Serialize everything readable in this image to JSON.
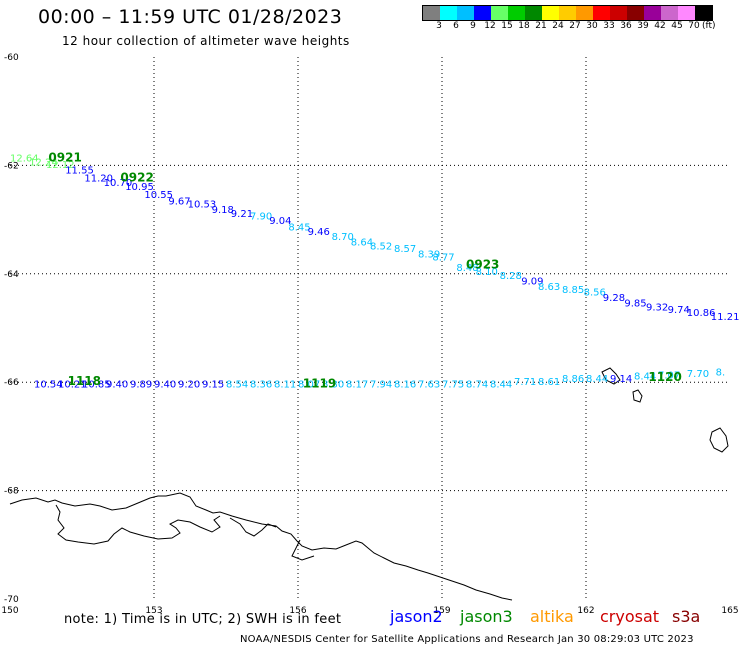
{
  "header": {
    "title": "00:00 – 11:59 UTC 01/28/2023",
    "subtitle": "12 hour collection of altimeter wave heights"
  },
  "colorbar": {
    "colors": [
      "#7f7f7f",
      "#00ffff",
      "#00bfff",
      "#0000ff",
      "#66ff66",
      "#00cc00",
      "#008800",
      "#ffff00",
      "#ffcc00",
      "#ff9900",
      "#ff0000",
      "#cc0000",
      "#880000",
      "#990099",
      "#cc66cc",
      "#ff88ff",
      "#000000"
    ],
    "labels": [
      "3",
      "6",
      "9",
      "12",
      "15",
      "18",
      "21",
      "24",
      "27",
      "30",
      "33",
      "36",
      "39",
      "42",
      "45",
      "70"
    ],
    "unit": "(ft)"
  },
  "map": {
    "lon_ticks": [
      "150",
      "153",
      "156",
      "159",
      "162",
      "165"
    ],
    "lat_ticks": [
      "-60",
      "-62",
      "-64",
      "-66",
      "-68",
      "-70"
    ]
  },
  "tracks": [
    {
      "name": "upper-track",
      "times": [
        {
          "label": "0921",
          "lon": 150.8,
          "lat": -61.93,
          "color": "#008800"
        },
        {
          "label": "0922",
          "lon": 152.3,
          "lat": -62.3,
          "color": "#008800"
        },
        {
          "label": "0923",
          "lon": 159.5,
          "lat": -63.9,
          "color": "#008800"
        }
      ],
      "points": [
        {
          "v": "12.64",
          "lon": 150.0,
          "lat": -61.93,
          "c": "#66ff66"
        },
        {
          "v": "12.24",
          "lon": 150.4,
          "lat": -62.0,
          "c": "#66ff66"
        },
        {
          "v": "12.12",
          "lon": 150.75,
          "lat": -62.05,
          "c": "#66ff66"
        },
        {
          "v": "11.55",
          "lon": 151.15,
          "lat": -62.15,
          "c": "#0000ff"
        },
        {
          "v": "11.20",
          "lon": 151.55,
          "lat": -62.3,
          "c": "#0000ff"
        },
        {
          "v": "10.70",
          "lon": 151.95,
          "lat": -62.38,
          "c": "#0000ff"
        },
        {
          "v": "10.95",
          "lon": 152.4,
          "lat": -62.45,
          "c": "#0000ff"
        },
        {
          "v": "10.55",
          "lon": 152.8,
          "lat": -62.6,
          "c": "#0000ff"
        },
        {
          "v": "9.67",
          "lon": 153.3,
          "lat": -62.72,
          "c": "#0000ff"
        },
        {
          "v": "10.53",
          "lon": 153.7,
          "lat": -62.78,
          "c": "#0000ff"
        },
        {
          "v": "9.18",
          "lon": 154.2,
          "lat": -62.88,
          "c": "#0000ff"
        },
        {
          "v": "9.21",
          "lon": 154.6,
          "lat": -62.95,
          "c": "#0000ff"
        },
        {
          "v": "7.90",
          "lon": 155.0,
          "lat": -63.0,
          "c": "#00bfff"
        },
        {
          "v": "9.04",
          "lon": 155.4,
          "lat": -63.08,
          "c": "#0000ff"
        },
        {
          "v": "8.45",
          "lon": 155.8,
          "lat": -63.2,
          "c": "#00bfff"
        },
        {
          "v": "9.46",
          "lon": 156.2,
          "lat": -63.28,
          "c": "#0000ff"
        },
        {
          "v": "8.70",
          "lon": 156.7,
          "lat": -63.38,
          "c": "#00bfff"
        },
        {
          "v": "8.64",
          "lon": 157.1,
          "lat": -63.48,
          "c": "#00bfff"
        },
        {
          "v": "8.52",
          "lon": 157.5,
          "lat": -63.55,
          "c": "#00bfff"
        },
        {
          "v": "8.57",
          "lon": 158.0,
          "lat": -63.6,
          "c": "#00bfff"
        },
        {
          "v": "8.39",
          "lon": 158.5,
          "lat": -63.7,
          "c": "#00bfff"
        },
        {
          "v": "8.77",
          "lon": 158.8,
          "lat": -63.75,
          "c": "#00bfff"
        },
        {
          "v": "8.48",
          "lon": 159.3,
          "lat": -63.95,
          "c": "#00bfff"
        },
        {
          "v": "8.10",
          "lon": 159.7,
          "lat": -64.02,
          "c": "#00bfff"
        },
        {
          "v": "8.28",
          "lon": 160.2,
          "lat": -64.1,
          "c": "#00bfff"
        },
        {
          "v": "9.09",
          "lon": 160.65,
          "lat": -64.2,
          "c": "#0000ff"
        },
        {
          "v": "8.63",
          "lon": 161.0,
          "lat": -64.3,
          "c": "#00bfff"
        },
        {
          "v": "8.85",
          "lon": 161.5,
          "lat": -64.35,
          "c": "#00bfff"
        },
        {
          "v": "8.56",
          "lon": 161.95,
          "lat": -64.4,
          "c": "#00bfff"
        },
        {
          "v": "9.28",
          "lon": 162.35,
          "lat": -64.5,
          "c": "#0000ff"
        },
        {
          "v": "9.85",
          "lon": 162.8,
          "lat": -64.6,
          "c": "#0000ff"
        },
        {
          "v": "9.32",
          "lon": 163.25,
          "lat": -64.68,
          "c": "#0000ff"
        },
        {
          "v": "9.74",
          "lon": 163.7,
          "lat": -64.72,
          "c": "#0000ff"
        },
        {
          "v": "10.86",
          "lon": 164.1,
          "lat": -64.78,
          "c": "#0000ff"
        },
        {
          "v": "11.21",
          "lon": 164.6,
          "lat": -64.85,
          "c": "#0000ff"
        }
      ]
    },
    {
      "name": "lower-track",
      "times": [
        {
          "label": "1118",
          "lon": 151.2,
          "lat": -66.05,
          "color": "#008800"
        },
        {
          "label": "1119",
          "lon": 156.1,
          "lat": -66.1,
          "color": "#008800"
        },
        {
          "label": "1120",
          "lon": 163.3,
          "lat": -65.98,
          "color": "#008800"
        }
      ],
      "points": [
        {
          "v": "10.54",
          "lon": 150.5,
          "lat": -66.1,
          "c": "#0000ff"
        },
        {
          "v": "10.21",
          "lon": 151.0,
          "lat": -66.1,
          "c": "#0000ff"
        },
        {
          "v": "10.85",
          "lon": 151.5,
          "lat": -66.1,
          "c": "#0000ff"
        },
        {
          "v": "9.40",
          "lon": 152.0,
          "lat": -66.1,
          "c": "#0000ff"
        },
        {
          "v": "9.89",
          "lon": 152.5,
          "lat": -66.1,
          "c": "#0000ff"
        },
        {
          "v": "9.40",
          "lon": 153.0,
          "lat": -66.1,
          "c": "#0000ff"
        },
        {
          "v": "9.20",
          "lon": 153.5,
          "lat": -66.1,
          "c": "#0000ff"
        },
        {
          "v": "9.15",
          "lon": 154.0,
          "lat": -66.1,
          "c": "#0000ff"
        },
        {
          "v": "8.54",
          "lon": 154.5,
          "lat": -66.1,
          "c": "#00bfff"
        },
        {
          "v": "8.36",
          "lon": 155.0,
          "lat": -66.1,
          "c": "#00bfff"
        },
        {
          "v": "8.11",
          "lon": 155.5,
          "lat": -66.1,
          "c": "#00bfff"
        },
        {
          "v": "8.07",
          "lon": 156.0,
          "lat": -66.1,
          "c": "#00bfff"
        },
        {
          "v": "8.30",
          "lon": 156.5,
          "lat": -66.1,
          "c": "#00bfff"
        },
        {
          "v": "8.17",
          "lon": 157.0,
          "lat": -66.1,
          "c": "#00bfff"
        },
        {
          "v": "7.94",
          "lon": 157.5,
          "lat": -66.1,
          "c": "#00bfff"
        },
        {
          "v": "8.16",
          "lon": 158.0,
          "lat": -66.1,
          "c": "#00bfff"
        },
        {
          "v": "7.63",
          "lon": 158.5,
          "lat": -66.1,
          "c": "#00bfff"
        },
        {
          "v": "7.75",
          "lon": 159.0,
          "lat": -66.1,
          "c": "#00bfff"
        },
        {
          "v": "8.74",
          "lon": 159.5,
          "lat": -66.1,
          "c": "#00bfff"
        },
        {
          "v": "8.44",
          "lon": 160.0,
          "lat": -66.1,
          "c": "#00bfff"
        },
        {
          "v": "7.71",
          "lon": 160.5,
          "lat": -66.05,
          "c": "#00bfff"
        },
        {
          "v": "8.61",
          "lon": 161.0,
          "lat": -66.05,
          "c": "#00bfff"
        },
        {
          "v": "8.86",
          "lon": 161.5,
          "lat": -66.0,
          "c": "#00bfff"
        },
        {
          "v": "8.44",
          "lon": 162.0,
          "lat": -66.0,
          "c": "#00bfff"
        },
        {
          "v": "9.14",
          "lon": 162.5,
          "lat": -66.0,
          "c": "#0000ff"
        },
        {
          "v": "8.44",
          "lon": 163.0,
          "lat": -65.95,
          "c": "#00bfff"
        },
        {
          "v": "7.07",
          "lon": 163.5,
          "lat": -65.93,
          "c": "#00bfff"
        },
        {
          "v": "7.70",
          "lon": 164.1,
          "lat": -65.9,
          "c": "#00bfff"
        },
        {
          "v": "8.",
          "lon": 164.7,
          "lat": -65.88,
          "c": "#00bfff"
        }
      ]
    }
  ],
  "footer": {
    "note": "note:  1) Time is in UTC;  2) SWH is in feet",
    "credit": "NOAA/NESDIS Center for Satellite Applications and Research     Jan 30 08:29:03 UTC 2023"
  },
  "legend": [
    {
      "label": "jason2",
      "color": "#0000ff"
    },
    {
      "label": "jason3",
      "color": "#008800"
    },
    {
      "label": "altika",
      "color": "#ff9900"
    },
    {
      "label": "cryosat",
      "color": "#cc0000"
    },
    {
      "label": "s3a",
      "color": "#880000"
    }
  ]
}
